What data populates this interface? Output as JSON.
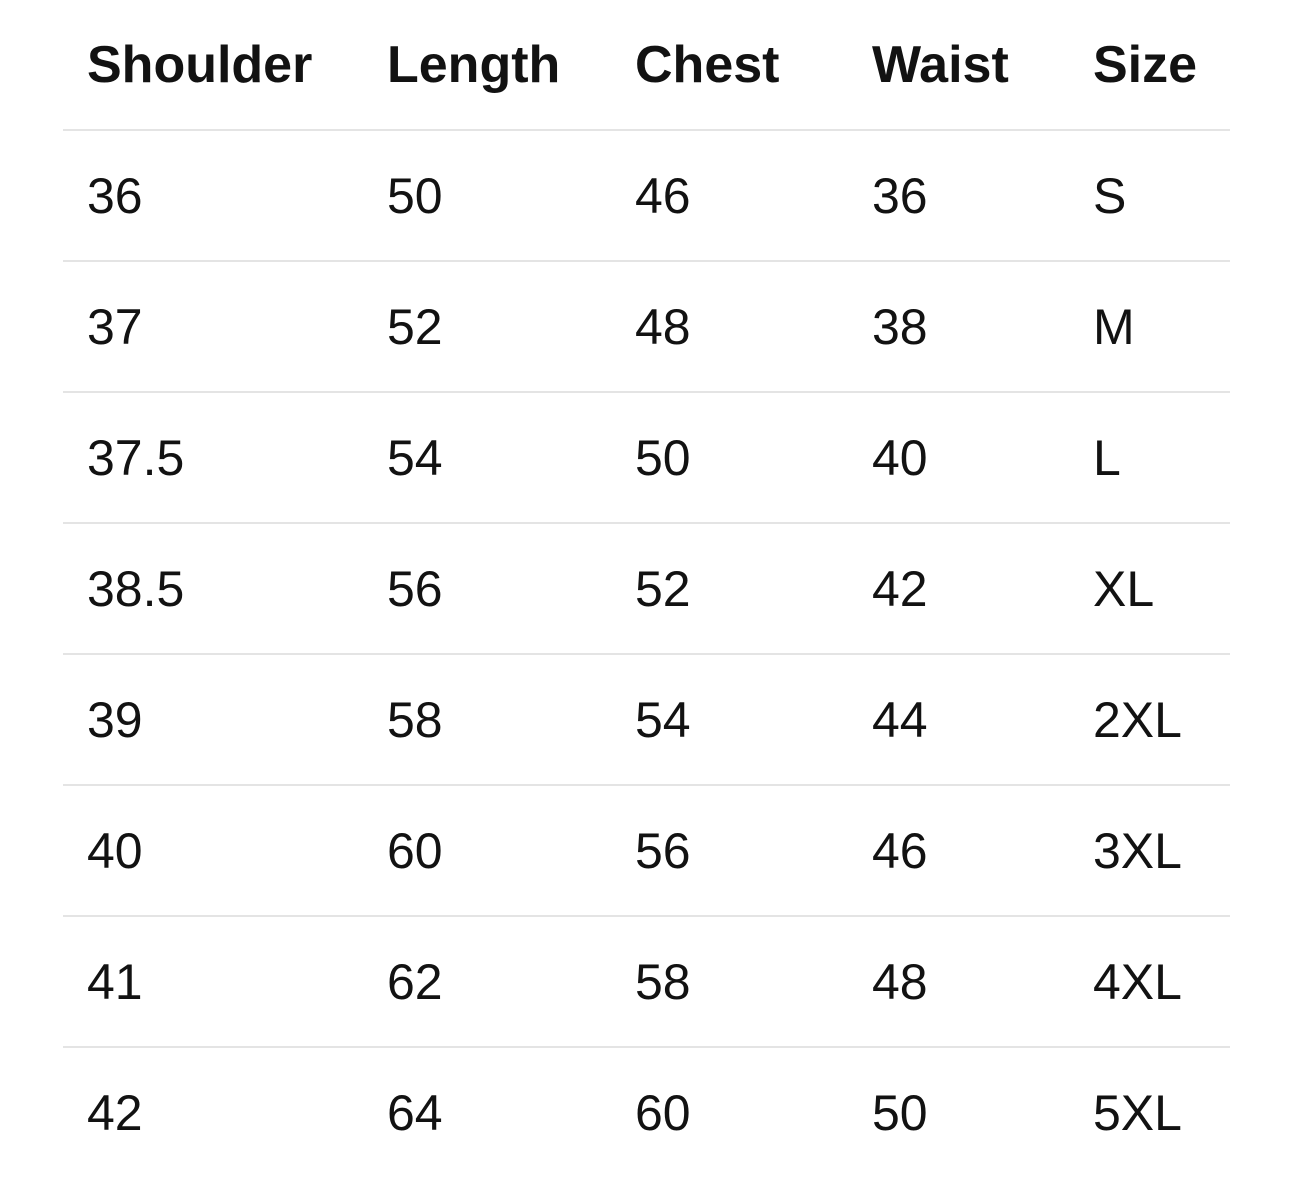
{
  "size_chart": {
    "headers": [
      "Shoulder",
      "Length",
      "Chest",
      "Waist",
      "Size"
    ],
    "rows": [
      [
        "36",
        "50",
        "46",
        "36",
        "S"
      ],
      [
        "37",
        "52",
        "48",
        "38",
        "M"
      ],
      [
        "37.5",
        "54",
        "50",
        "40",
        "L"
      ],
      [
        "38.5",
        "56",
        "52",
        "42",
        "XL"
      ],
      [
        "39",
        "58",
        "54",
        "44",
        "2XL"
      ],
      [
        "40",
        "60",
        "56",
        "46",
        "3XL"
      ],
      [
        "41",
        "62",
        "58",
        "48",
        "4XL"
      ],
      [
        "42",
        "64",
        "60",
        "50",
        "5XL"
      ]
    ]
  },
  "chart_data": {
    "type": "table",
    "title": "",
    "columns": [
      "Shoulder",
      "Length",
      "Chest",
      "Waist",
      "Size"
    ],
    "rows": [
      [
        "36",
        "50",
        "46",
        "36",
        "S"
      ],
      [
        "37",
        "52",
        "48",
        "38",
        "M"
      ],
      [
        "37.5",
        "54",
        "50",
        "40",
        "L"
      ],
      [
        "38.5",
        "56",
        "52",
        "42",
        "XL"
      ],
      [
        "39",
        "58",
        "54",
        "44",
        "2XL"
      ],
      [
        "40",
        "60",
        "56",
        "46",
        "3XL"
      ],
      [
        "41",
        "62",
        "58",
        "48",
        "4XL"
      ],
      [
        "42",
        "64",
        "60",
        "50",
        "5XL"
      ]
    ]
  },
  "colors": {
    "background": "#ffffff",
    "text": "#121212",
    "divider": "#e4e4e4"
  }
}
